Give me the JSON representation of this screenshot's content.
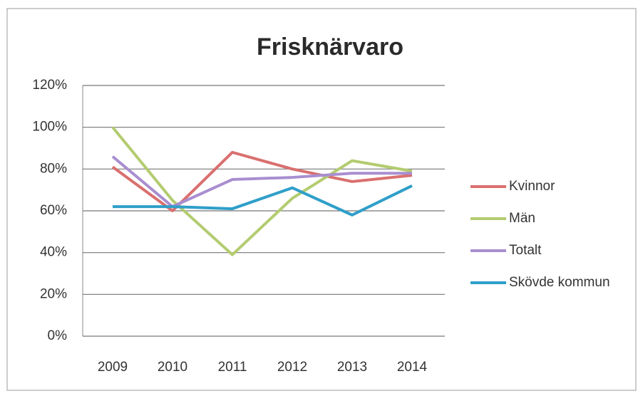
{
  "chart_data": {
    "type": "line",
    "title": "Frisknärvaro",
    "categories": [
      "2009",
      "2010",
      "2011",
      "2012",
      "2013",
      "2014"
    ],
    "series": [
      {
        "name": "Kvinnor",
        "color": "#d9706f",
        "values": [
          81,
          60,
          88,
          80,
          74,
          77
        ]
      },
      {
        "name": "Män",
        "color": "#b3cc70",
        "values": [
          100,
          65,
          39,
          66,
          84,
          79
        ]
      },
      {
        "name": "Totalt",
        "color": "#a98ed0",
        "values": [
          86,
          62,
          75,
          76,
          78,
          78
        ]
      },
      {
        "name": "Skövde kommun",
        "color": "#2f9fc9",
        "values": [
          62,
          62,
          61,
          71,
          58,
          72
        ]
      }
    ],
    "ylim": [
      0,
      120
    ],
    "yticks": [
      {
        "value": 0,
        "label": "0%"
      },
      {
        "value": 20,
        "label": "20%"
      },
      {
        "value": 40,
        "label": "40%"
      },
      {
        "value": 60,
        "label": "60%"
      },
      {
        "value": 80,
        "label": "80%"
      },
      {
        "value": 100,
        "label": "100%"
      },
      {
        "value": 120,
        "label": "120%"
      }
    ],
    "grid": true,
    "legend": "right"
  }
}
